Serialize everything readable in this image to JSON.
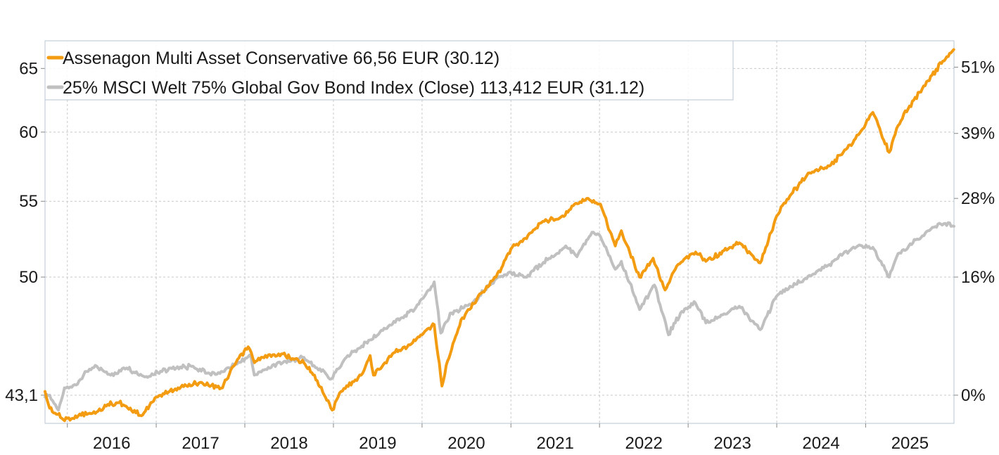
{
  "chart_data": {
    "type": "line",
    "title": "",
    "xlabel": "",
    "ylabel": "",
    "y_scale": "log",
    "y_left_range": [
      41.6,
      67.3
    ],
    "x_range": [
      "2015-10-01",
      "2025-12-31"
    ],
    "grid": true,
    "legend_placement": "top-left",
    "x_tick_labels": [
      "2016",
      "2017",
      "2018",
      "2019",
      "2020",
      "2021",
      "2022",
      "2023",
      "2024",
      "2025"
    ],
    "y_left_ticks": [
      {
        "value": 43.1,
        "label": "43,1"
      },
      {
        "value": 50,
        "label": "50"
      },
      {
        "value": 55,
        "label": "55"
      },
      {
        "value": 60,
        "label": "60"
      },
      {
        "value": 65,
        "label": "65"
      }
    ],
    "y_right_ticks": [
      {
        "value": 43.1,
        "label": "0%"
      },
      {
        "value": 50.0,
        "label": "16%"
      },
      {
        "value": 55.2,
        "label": "28%"
      },
      {
        "value": 59.9,
        "label": "39%"
      },
      {
        "value": 65.1,
        "label": "51%"
      }
    ],
    "series": [
      {
        "name": "Assenagon Multi Asset Conservative 66,56 EUR (30.12)",
        "color": "#f39c12",
        "points": [
          [
            "2015-10-01",
            43.3
          ],
          [
            "2015-10-20",
            42.4
          ],
          [
            "2015-12-15",
            41.8
          ],
          [
            "2016-02-15",
            42.0
          ],
          [
            "2016-05-01",
            42.2
          ],
          [
            "2016-06-15",
            42.6
          ],
          [
            "2016-08-01",
            42.7
          ],
          [
            "2016-11-01",
            42.0
          ],
          [
            "2017-01-01",
            43.0
          ],
          [
            "2017-04-01",
            43.5
          ],
          [
            "2017-07-01",
            43.8
          ],
          [
            "2017-10-01",
            43.5
          ],
          [
            "2017-11-15",
            44.7
          ],
          [
            "2018-01-15",
            45.8
          ],
          [
            "2018-02-10",
            44.9
          ],
          [
            "2018-03-15",
            45.2
          ],
          [
            "2018-06-01",
            45.4
          ],
          [
            "2018-09-01",
            44.9
          ],
          [
            "2018-10-15",
            44.2
          ],
          [
            "2018-12-27",
            42.3
          ],
          [
            "2019-02-01",
            43.3
          ],
          [
            "2019-05-01",
            44.3
          ],
          [
            "2019-06-01",
            45.3
          ],
          [
            "2019-06-15",
            44.2
          ],
          [
            "2019-08-01",
            44.9
          ],
          [
            "2019-09-01",
            45.4
          ],
          [
            "2019-11-01",
            45.8
          ],
          [
            "2020-01-01",
            46.5
          ],
          [
            "2020-02-20",
            47.1
          ],
          [
            "2020-03-23",
            43.6
          ],
          [
            "2020-04-15",
            45.0
          ],
          [
            "2020-06-15",
            47.5
          ],
          [
            "2020-09-01",
            49.0
          ],
          [
            "2020-11-01",
            50.0
          ],
          [
            "2021-01-01",
            51.8
          ],
          [
            "2021-03-01",
            52.5
          ],
          [
            "2021-05-01",
            53.5
          ],
          [
            "2021-08-01",
            54.0
          ],
          [
            "2021-09-15",
            54.7
          ],
          [
            "2021-11-15",
            55.2
          ],
          [
            "2022-01-05",
            54.8
          ],
          [
            "2022-03-07",
            52.0
          ],
          [
            "2022-04-01",
            53.0
          ],
          [
            "2022-06-15",
            50.0
          ],
          [
            "2022-08-10",
            51.2
          ],
          [
            "2022-09-28",
            49.2
          ],
          [
            "2022-11-15",
            50.7
          ],
          [
            "2023-02-01",
            51.6
          ],
          [
            "2023-03-15",
            51.0
          ],
          [
            "2023-07-31",
            52.2
          ],
          [
            "2023-10-25",
            50.9
          ],
          [
            "2024-01-01",
            54.0
          ],
          [
            "2024-03-01",
            55.5
          ],
          [
            "2024-05-15",
            57.0
          ],
          [
            "2024-08-05",
            57.5
          ],
          [
            "2024-10-01",
            58.5
          ],
          [
            "2024-11-20",
            59.5
          ],
          [
            "2025-01-31",
            61.5
          ],
          [
            "2025-04-08",
            58.5
          ],
          [
            "2025-05-15",
            60.5
          ],
          [
            "2025-07-01",
            62.0
          ],
          [
            "2025-09-15",
            64.0
          ],
          [
            "2025-11-15",
            65.6
          ],
          [
            "2025-12-30",
            66.56
          ]
        ]
      },
      {
        "name": "25% MSCI Welt 75% Global Gov Bond Index (Close) 113,412 EUR (31.12)",
        "color": "#c0c0c0",
        "points": [
          [
            "2015-10-01",
            43.0
          ],
          [
            "2015-10-20",
            43.1
          ],
          [
            "2015-11-25",
            42.3
          ],
          [
            "2015-12-20",
            43.5
          ],
          [
            "2016-02-12",
            43.7
          ],
          [
            "2016-03-20",
            44.4
          ],
          [
            "2016-05-01",
            44.7
          ],
          [
            "2016-06-27",
            44.2
          ],
          [
            "2016-09-01",
            44.6
          ],
          [
            "2016-11-15",
            44.1
          ],
          [
            "2017-03-01",
            44.6
          ],
          [
            "2017-06-01",
            44.7
          ],
          [
            "2017-08-15",
            44.2
          ],
          [
            "2017-11-01",
            44.6
          ],
          [
            "2018-01-26",
            45.3
          ],
          [
            "2018-02-09",
            44.2
          ],
          [
            "2018-05-01",
            44.8
          ],
          [
            "2018-09-01",
            45.2
          ],
          [
            "2018-10-25",
            44.6
          ],
          [
            "2018-12-24",
            44.0
          ],
          [
            "2019-03-01",
            45.3
          ],
          [
            "2019-06-01",
            46.2
          ],
          [
            "2019-08-15",
            47.0
          ],
          [
            "2019-12-01",
            48.0
          ],
          [
            "2020-02-20",
            49.7
          ],
          [
            "2020-03-18",
            46.6
          ],
          [
            "2020-05-01",
            47.8
          ],
          [
            "2020-08-01",
            48.5
          ],
          [
            "2020-11-01",
            49.9
          ],
          [
            "2021-01-01",
            50.3
          ],
          [
            "2021-03-01",
            50.0
          ],
          [
            "2021-06-01",
            51.1
          ],
          [
            "2021-08-15",
            52.0
          ],
          [
            "2021-09-30",
            51.3
          ],
          [
            "2021-12-01",
            52.9
          ],
          [
            "2022-01-05",
            52.6
          ],
          [
            "2022-03-07",
            50.5
          ],
          [
            "2022-04-01",
            51.0
          ],
          [
            "2022-06-15",
            48.0
          ],
          [
            "2022-08-15",
            49.5
          ],
          [
            "2022-10-12",
            46.5
          ],
          [
            "2022-12-01",
            47.8
          ],
          [
            "2023-01-31",
            48.4
          ],
          [
            "2023-03-15",
            47.2
          ],
          [
            "2023-07-31",
            48.2
          ],
          [
            "2023-10-25",
            46.8
          ],
          [
            "2023-12-31",
            48.8
          ],
          [
            "2024-03-01",
            49.4
          ],
          [
            "2024-06-01",
            50.2
          ],
          [
            "2024-08-05",
            50.8
          ],
          [
            "2024-10-01",
            51.5
          ],
          [
            "2024-11-30",
            52.0
          ],
          [
            "2025-01-31",
            51.9
          ],
          [
            "2025-04-08",
            50.0
          ],
          [
            "2025-05-15",
            51.5
          ],
          [
            "2025-07-15",
            52.2
          ],
          [
            "2025-09-15",
            53.0
          ],
          [
            "2025-11-01",
            53.5
          ],
          [
            "2025-12-31",
            53.3
          ]
        ]
      }
    ]
  }
}
